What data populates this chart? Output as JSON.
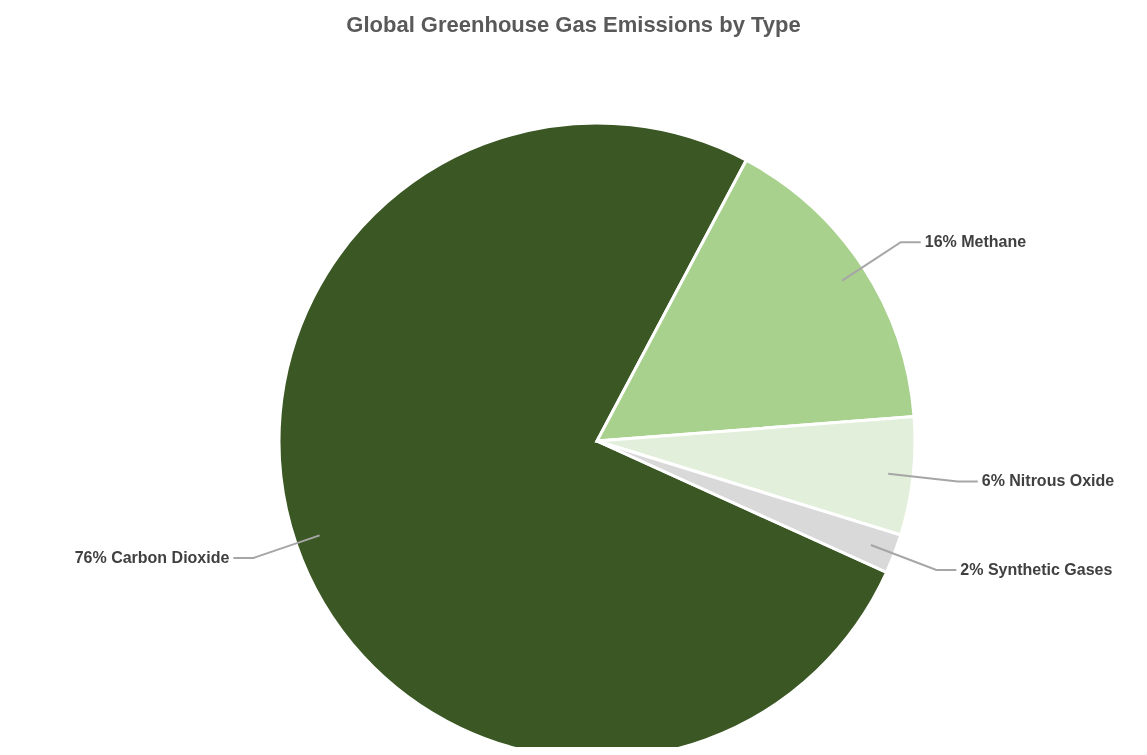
{
  "chart_data": {
    "type": "pie",
    "title": "Global Greenhouse Gas Emissions by Type",
    "categories": [
      "Carbon Dioxide",
      "Methane",
      "Nitrous Oxide",
      "Synthetic Gases"
    ],
    "values": [
      76,
      16,
      6,
      2
    ],
    "value_labels": [
      "76%",
      "16%",
      "6%",
      "2%"
    ],
    "colors": [
      "#3a5724",
      "#a9d18e",
      "#e2efda",
      "#d9d9d9"
    ],
    "legend": false
  }
}
